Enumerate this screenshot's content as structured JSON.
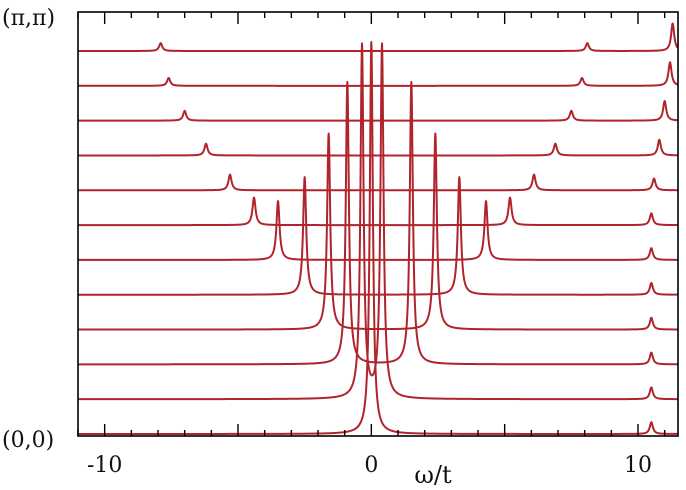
{
  "chart_data": {
    "type": "line",
    "title": "",
    "xlabel": "ω/t",
    "ylabel": "",
    "xlim": [
      -11,
      11.5
    ],
    "xticks": [
      -10,
      0,
      10
    ],
    "xtick_labels": [
      "-10",
      "0",
      "10"
    ],
    "row_labels": {
      "bottom": "(0,0)",
      "top": "(π,π)"
    },
    "grid": false,
    "legend": "none",
    "line_color": "#b0242b",
    "broadening": 0.07,
    "spectra": [
      {
        "peaks": [
          [
            0.0,
            1.0
          ],
          [
            10.5,
            0.03
          ]
        ]
      },
      {
        "peaks": [
          [
            -0.35,
            0.9
          ],
          [
            0.4,
            0.9
          ],
          [
            10.5,
            0.03
          ]
        ]
      },
      {
        "peaks": [
          [
            -0.9,
            0.72
          ],
          [
            1.5,
            0.72
          ],
          [
            10.5,
            0.03
          ]
        ]
      },
      {
        "peaks": [
          [
            -1.6,
            0.5
          ],
          [
            2.4,
            0.5
          ],
          [
            10.5,
            0.03
          ]
        ]
      },
      {
        "peaks": [
          [
            -2.5,
            0.3
          ],
          [
            3.3,
            0.3
          ],
          [
            10.5,
            0.03
          ]
        ]
      },
      {
        "peaks": [
          [
            -3.5,
            0.15
          ],
          [
            4.3,
            0.15
          ],
          [
            10.5,
            0.03
          ]
        ]
      },
      {
        "peaks": [
          [
            -4.4,
            0.07
          ],
          [
            5.2,
            0.07
          ],
          [
            10.5,
            0.03
          ]
        ]
      },
      {
        "peaks": [
          [
            -5.3,
            0.04
          ],
          [
            6.1,
            0.04
          ],
          [
            10.6,
            0.03
          ]
        ]
      },
      {
        "peaks": [
          [
            -6.2,
            0.03
          ],
          [
            6.9,
            0.03
          ],
          [
            10.8,
            0.04
          ]
        ]
      },
      {
        "peaks": [
          [
            -7.0,
            0.025
          ],
          [
            7.5,
            0.025
          ],
          [
            11.0,
            0.05
          ]
        ]
      },
      {
        "peaks": [
          [
            -7.6,
            0.02
          ],
          [
            7.9,
            0.02
          ],
          [
            11.2,
            0.06
          ]
        ]
      },
      {
        "peaks": [
          [
            -7.9,
            0.02
          ],
          [
            8.1,
            0.02
          ],
          [
            11.3,
            0.07
          ]
        ]
      }
    ]
  }
}
